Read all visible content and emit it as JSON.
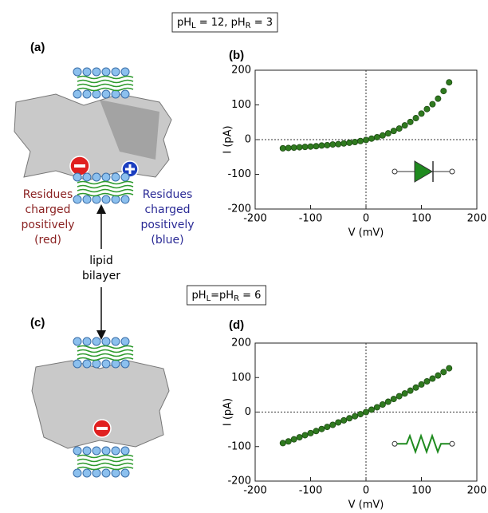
{
  "illustration": {
    "labels": [
      "(a)",
      "(c)"
    ],
    "left_note": [
      "Residues",
      "charged",
      "positively",
      "(red)"
    ],
    "right_note": [
      "Residues",
      "charged",
      "positively",
      "(blue)"
    ],
    "bilayer_note": [
      "lipid",
      "bilayer"
    ]
  },
  "chart_data": [
    {
      "type": "scatter",
      "panel_label": "(b)",
      "condition": [
        "pH",
        "L",
        " = 12, pH",
        "R",
        " = 3"
      ],
      "xlabel": "V (mV)",
      "ylabel": "I (pA)",
      "xlim": [
        -200,
        200
      ],
      "ylim": [
        -200,
        200
      ],
      "xticks": [
        -200,
        -100,
        0,
        100,
        200
      ],
      "yticks": [
        -200,
        -100,
        0,
        100,
        200
      ],
      "x": [
        -150,
        -140,
        -130,
        -120,
        -110,
        -100,
        -90,
        -80,
        -70,
        -60,
        -50,
        -40,
        -30,
        -20,
        -10,
        0,
        10,
        20,
        30,
        40,
        50,
        60,
        70,
        80,
        90,
        100,
        110,
        120,
        130,
        140,
        150
      ],
      "series": [
        {
          "color": "#2f7a1f",
          "values": [
            -25,
            -24,
            -23,
            -22,
            -21,
            -20,
            -19,
            -17,
            -16,
            -14,
            -13,
            -11,
            -9,
            -7,
            -4,
            -1,
            3,
            7,
            12,
            18,
            25,
            32,
            41,
            51,
            62,
            75,
            88,
            102,
            118,
            140,
            165
          ]
        }
      ]
    },
    {
      "type": "scatter",
      "panel_label": "(d)",
      "condition": [
        "pH",
        "L",
        "=pH",
        "R",
        " = 6"
      ],
      "xlabel": "V (mV)",
      "ylabel": "I (pA)",
      "xlim": [
        -200,
        200
      ],
      "ylim": [
        -200,
        200
      ],
      "xticks": [
        -200,
        -100,
        0,
        100,
        200
      ],
      "yticks": [
        -200,
        -100,
        0,
        100,
        200
      ],
      "x": [
        -150,
        -140,
        -130,
        -120,
        -110,
        -100,
        -90,
        -80,
        -70,
        -60,
        -50,
        -40,
        -30,
        -20,
        -10,
        0,
        10,
        20,
        30,
        40,
        50,
        60,
        70,
        80,
        90,
        100,
        110,
        120,
        130,
        140,
        150
      ],
      "series": [
        {
          "color": "#2f7a1f",
          "values": [
            -90,
            -85,
            -79,
            -73,
            -67,
            -61,
            -55,
            -49,
            -43,
            -37,
            -30,
            -24,
            -18,
            -12,
            -6,
            0,
            7,
            14,
            22,
            30,
            38,
            46,
            54,
            62,
            71,
            80,
            89,
            97,
            106,
            116,
            127
          ]
        }
      ]
    }
  ]
}
